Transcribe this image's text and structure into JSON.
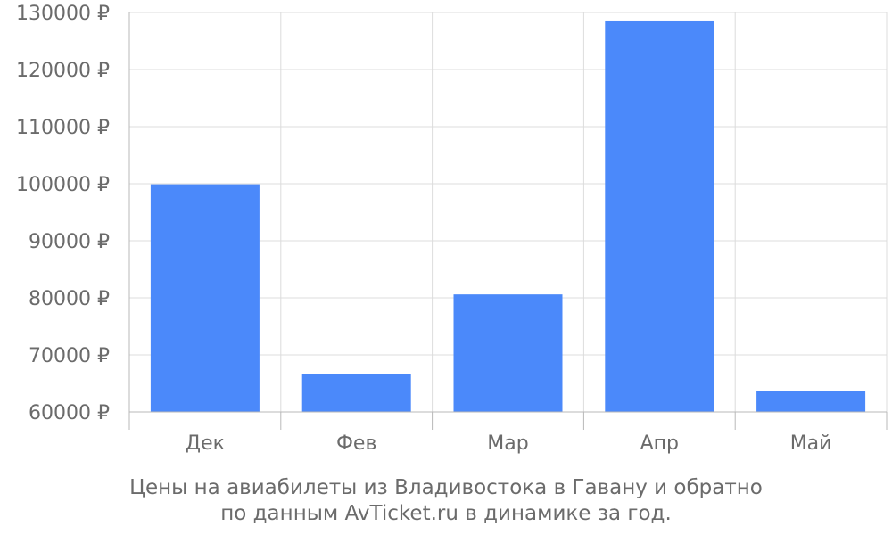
{
  "caption": {
    "line1": "Цены на авиабилеты из Владивостока в Гавану и обратно",
    "line2": "по данным AvTicket.ru в динамике за год."
  },
  "colors": {
    "bar": "#4b89fa",
    "grid": "#dcdcdc",
    "axis": "#b8b8b8",
    "label": "#6b6b6b"
  },
  "chart_data": {
    "type": "bar",
    "categories": [
      "Дек",
      "Фев",
      "Мар",
      "Апр",
      "Май"
    ],
    "values": [
      99900,
      66600,
      80600,
      128600,
      63700
    ],
    "ylim": [
      60000,
      130000
    ],
    "yticks": [
      60000,
      70000,
      80000,
      90000,
      100000,
      110000,
      120000,
      130000
    ],
    "ytick_labels": [
      "60000 ₽",
      "70000 ₽",
      "80000 ₽",
      "90000 ₽",
      "100000 ₽",
      "110000 ₽",
      "120000 ₽",
      "130000 ₽"
    ],
    "grid": true,
    "legend": "none"
  }
}
